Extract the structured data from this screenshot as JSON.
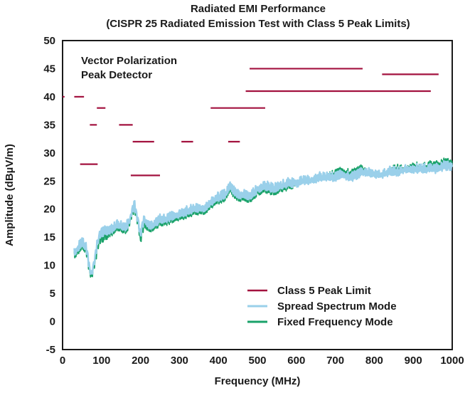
{
  "chart_data": {
    "type": "line",
    "title": "Radiated EMI Performance",
    "subtitle": "(CISPR 25 Radiated Emission Test with Class 5 Peak Limits)",
    "xlabel": "Frequency (MHz)",
    "ylabel": "Amplitude (dBµV/m)",
    "xlim": [
      0,
      1000
    ],
    "ylim": [
      -5,
      50
    ],
    "xticks": [
      0,
      100,
      200,
      300,
      400,
      500,
      600,
      700,
      800,
      900,
      1000
    ],
    "yticks": [
      -5,
      0,
      5,
      10,
      15,
      20,
      25,
      30,
      35,
      40,
      45,
      50
    ],
    "grid": false,
    "legend_position": "bottom-right",
    "annotation": [
      "Vector Polarization",
      "Peak Detector"
    ],
    "colors": {
      "limit": "#a3123f",
      "spread": "#9ad0ea",
      "fixed": "#1aa26a"
    },
    "series": [
      {
        "name": "Class 5 Peak Limit",
        "kind": "segments",
        "segments": [
          {
            "x": [
              0,
              5
            ],
            "y": 40
          },
          {
            "x": [
              30,
              55
            ],
            "y": 40
          },
          {
            "x": [
              88,
              110
            ],
            "y": 38
          },
          {
            "x": [
              70,
              88
            ],
            "y": 35
          },
          {
            "x": [
              145,
              180
            ],
            "y": 35
          },
          {
            "x": [
              180,
              235
            ],
            "y": 32
          },
          {
            "x": [
              305,
              335
            ],
            "y": 32
          },
          {
            "x": [
              425,
              455
            ],
            "y": 32
          },
          {
            "x": [
              380,
              520
            ],
            "y": 38
          },
          {
            "x": [
              480,
              770
            ],
            "y": 45
          },
          {
            "x": [
              470,
              945
            ],
            "y": 41
          },
          {
            "x": [
              820,
              965
            ],
            "y": 44
          },
          {
            "x": [
              45,
              90
            ],
            "y": 28
          },
          {
            "x": [
              175,
              250
            ],
            "y": 26
          }
        ]
      },
      {
        "name": "Spread Spectrum Mode",
        "kind": "line",
        "x": [
          30,
          40,
          50,
          60,
          65,
          70,
          75,
          80,
          85,
          90,
          95,
          100,
          110,
          120,
          130,
          140,
          150,
          160,
          170,
          175,
          180,
          185,
          190,
          195,
          200,
          205,
          210,
          220,
          230,
          240,
          250,
          260,
          280,
          300,
          320,
          340,
          360,
          380,
          400,
          420,
          430,
          440,
          450,
          460,
          480,
          500,
          520,
          540,
          560,
          580,
          600,
          620,
          640,
          660,
          680,
          700,
          720,
          740,
          760,
          770,
          780,
          800,
          820,
          840,
          860,
          880,
          900,
          920,
          940,
          960,
          980,
          1000
        ],
        "y": [
          12,
          13,
          14,
          13,
          11,
          9,
          8,
          10,
          12,
          14,
          15,
          15.5,
          16,
          16,
          16.5,
          17,
          17,
          16.5,
          17.5,
          18.5,
          20,
          20.5,
          19,
          17,
          15,
          17,
          18,
          17,
          17,
          17.5,
          18,
          18,
          18.5,
          19,
          19.5,
          20,
          20,
          21,
          22,
          22.5,
          24,
          23,
          22.5,
          22.5,
          22,
          23.5,
          24,
          23.5,
          24,
          24.5,
          24.5,
          25,
          25,
          25.5,
          25.5,
          25.5,
          26,
          25.5,
          26,
          26.5,
          26.5,
          26,
          26,
          26.5,
          26.5,
          27,
          27,
          27,
          27,
          27,
          27.5,
          27.5
        ]
      },
      {
        "name": "Fixed Frequency Mode",
        "kind": "line",
        "x": [
          30,
          40,
          50,
          60,
          65,
          70,
          75,
          80,
          85,
          90,
          95,
          100,
          110,
          120,
          130,
          140,
          150,
          160,
          170,
          175,
          180,
          185,
          190,
          195,
          200,
          205,
          210,
          220,
          230,
          240,
          250,
          260,
          280,
          300,
          320,
          340,
          360,
          380,
          400,
          420,
          430,
          440,
          450,
          460,
          480,
          500,
          520,
          540,
          560,
          580,
          600,
          620,
          640,
          660,
          680,
          700,
          720,
          740,
          760,
          770,
          780,
          800,
          820,
          840,
          860,
          880,
          900,
          920,
          940,
          960,
          980,
          1000
        ],
        "y": [
          11.5,
          12.5,
          13.5,
          12.5,
          10.5,
          8.5,
          7.5,
          9.5,
          11,
          13,
          14,
          14.5,
          15,
          15.5,
          16,
          16.5,
          16.5,
          16,
          17,
          18,
          19.5,
          20,
          18.5,
          16.5,
          14,
          16,
          17,
          16.5,
          16.5,
          17,
          17.5,
          17.5,
          18,
          18.5,
          19,
          19.5,
          19.5,
          20.5,
          21.5,
          22,
          23.5,
          22.5,
          22,
          22,
          21.5,
          23,
          23.5,
          23,
          23.5,
          24,
          24.5,
          25,
          25,
          25.5,
          25.5,
          26,
          26.5,
          26,
          26.5,
          27,
          26.5,
          26,
          26,
          26.5,
          27,
          27,
          27.5,
          27,
          27.5,
          27.5,
          28,
          28
        ]
      }
    ]
  }
}
